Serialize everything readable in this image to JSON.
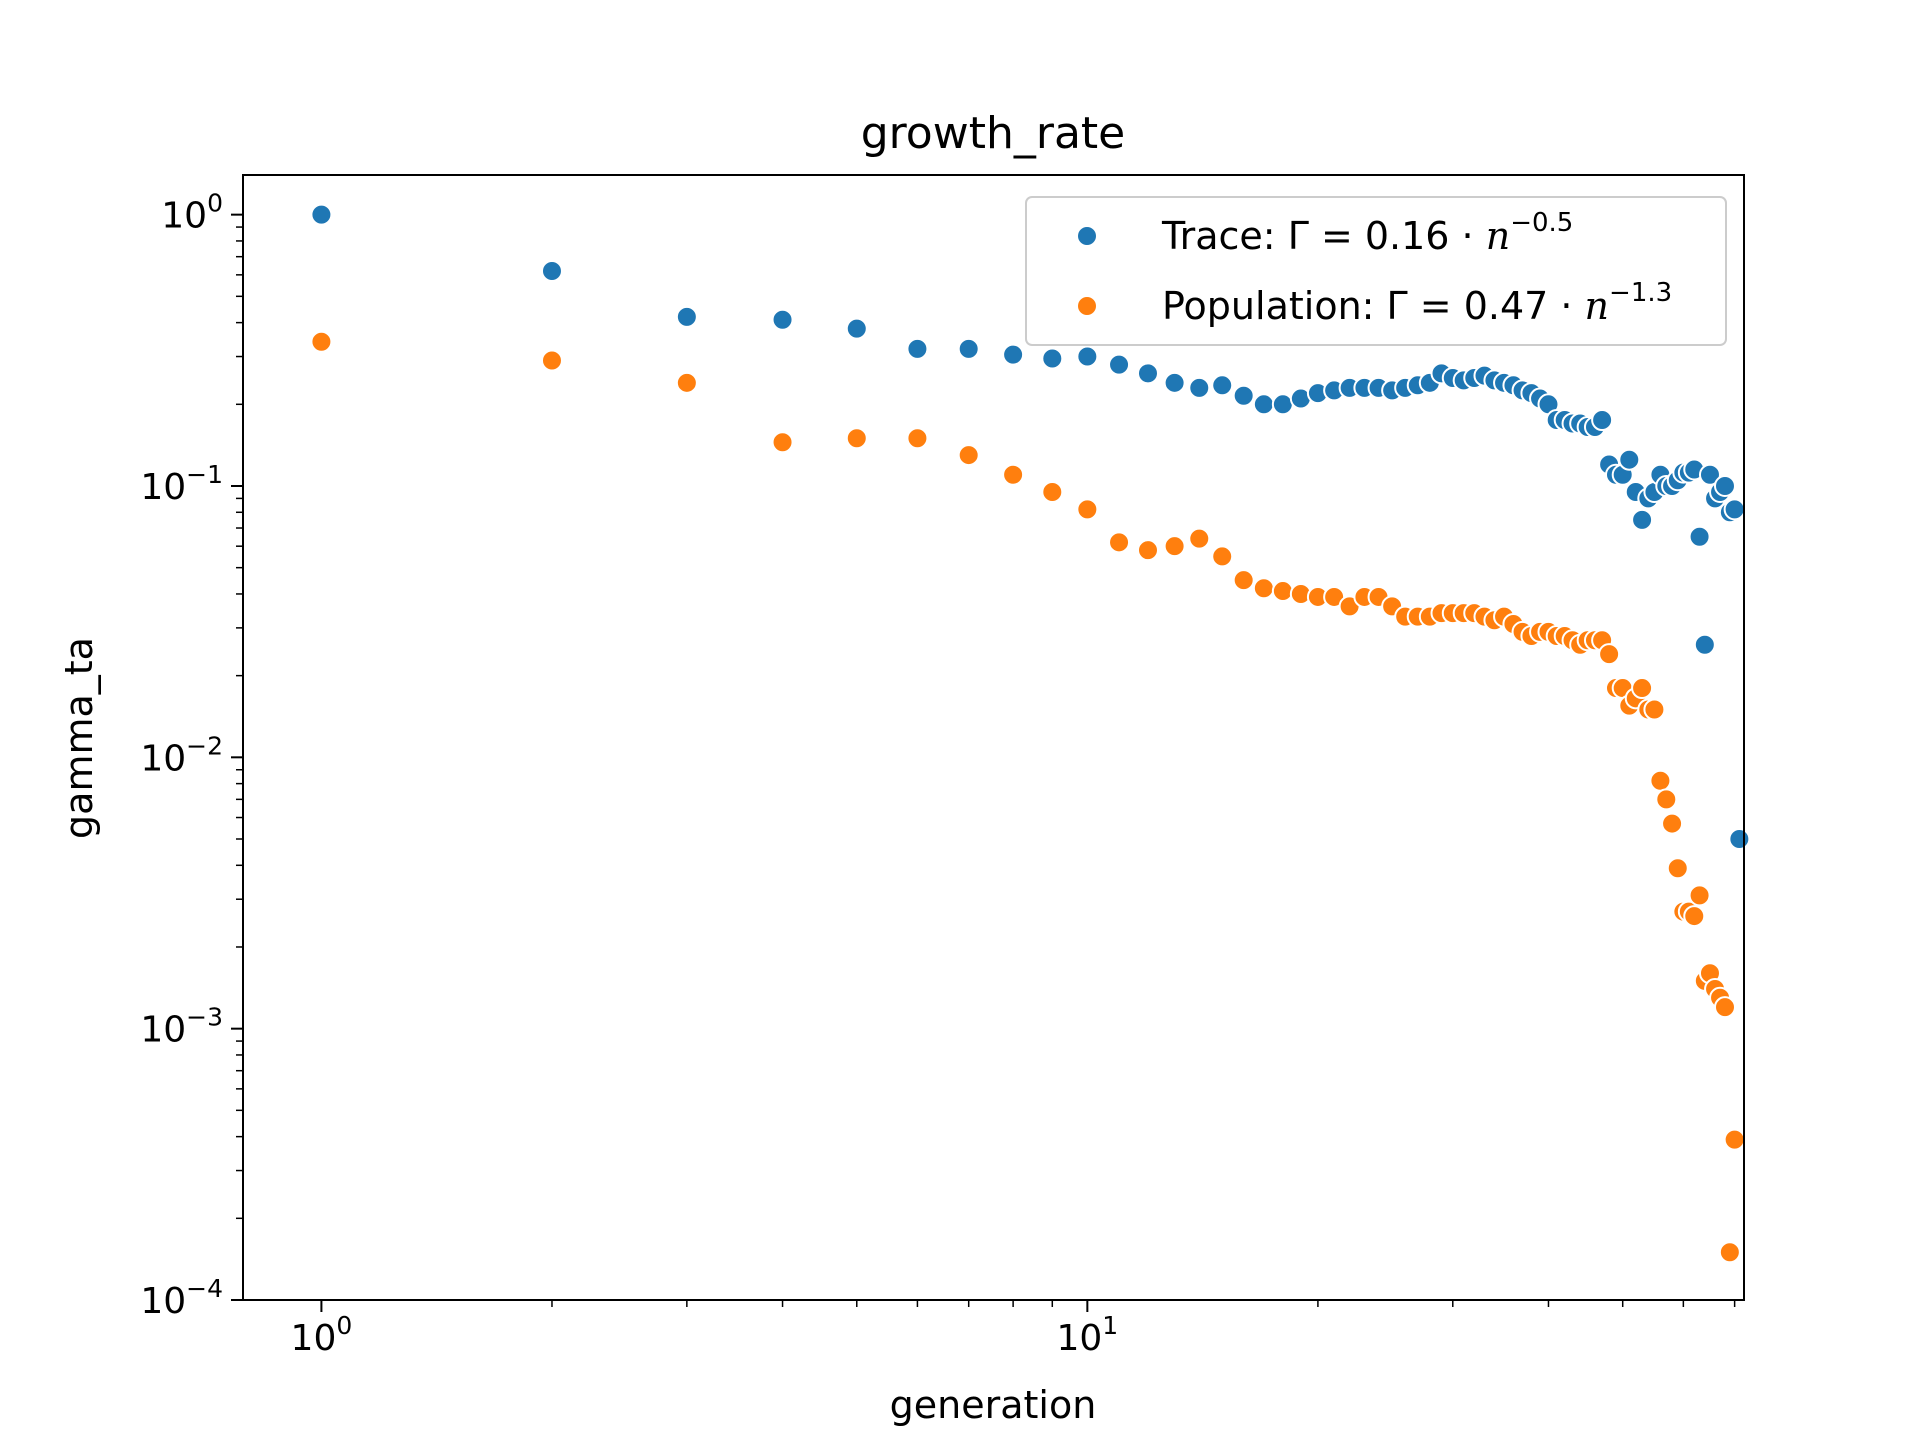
{
  "chart_data": {
    "type": "scatter",
    "title": "growth_rate",
    "xlabel": "generation",
    "ylabel": "gamma_ta",
    "xscale": "log",
    "yscale": "log",
    "xlim": [
      0.79,
      72
    ],
    "ylim": [
      0.0001,
      1.4
    ],
    "xticks": [
      {
        "base": "10",
        "exp": "0",
        "value": 1
      },
      {
        "base": "10",
        "exp": "1",
        "value": 10
      }
    ],
    "yticks": [
      {
        "base": "10",
        "exp": "0",
        "value": 1
      },
      {
        "base": "10",
        "exp": "−1",
        "value": 0.1
      },
      {
        "base": "10",
        "exp": "−2",
        "value": 0.01
      },
      {
        "base": "10",
        "exp": "−3",
        "value": 0.001
      },
      {
        "base": "10",
        "exp": "−4",
        "value": 0.0001
      }
    ],
    "grid": false,
    "legend_position": "top-right",
    "series": [
      {
        "name": "Trace",
        "legend": {
          "label": "Trace: ",
          "eq": "Γ = 0.16 · ",
          "n": "n",
          "exp": "−0.5"
        },
        "color": "#1f77b4",
        "points": [
          [
            1,
            1.0
          ],
          [
            2,
            0.62
          ],
          [
            3,
            0.42
          ],
          [
            4,
            0.41
          ],
          [
            5,
            0.38
          ],
          [
            6,
            0.32
          ],
          [
            7,
            0.32
          ],
          [
            8,
            0.305
          ],
          [
            9,
            0.295
          ],
          [
            10,
            0.3
          ],
          [
            11,
            0.28
          ],
          [
            12,
            0.26
          ],
          [
            13,
            0.24
          ],
          [
            14,
            0.23
          ],
          [
            15,
            0.235
          ],
          [
            16,
            0.215
          ],
          [
            17,
            0.2
          ],
          [
            18,
            0.2
          ],
          [
            19,
            0.21
          ],
          [
            20,
            0.22
          ],
          [
            21,
            0.225
          ],
          [
            22,
            0.23
          ],
          [
            23,
            0.23
          ],
          [
            24,
            0.23
          ],
          [
            25,
            0.225
          ],
          [
            26,
            0.23
          ],
          [
            27,
            0.235
          ],
          [
            28,
            0.24
          ],
          [
            29,
            0.26
          ],
          [
            30,
            0.25
          ],
          [
            31,
            0.245
          ],
          [
            32,
            0.25
          ],
          [
            33,
            0.255
          ],
          [
            34,
            0.245
          ],
          [
            35,
            0.24
          ],
          [
            36,
            0.235
          ],
          [
            37,
            0.225
          ],
          [
            38,
            0.22
          ],
          [
            39,
            0.21
          ],
          [
            40,
            0.2
          ],
          [
            41,
            0.175
          ],
          [
            42,
            0.175
          ],
          [
            43,
            0.17
          ],
          [
            44,
            0.17
          ],
          [
            45,
            0.165
          ],
          [
            46,
            0.165
          ],
          [
            47,
            0.175
          ],
          [
            48,
            0.12
          ],
          [
            49,
            0.11
          ],
          [
            50,
            0.11
          ],
          [
            51,
            0.125
          ],
          [
            52,
            0.095
          ],
          [
            53,
            0.075
          ],
          [
            54,
            0.09
          ],
          [
            55,
            0.095
          ],
          [
            56,
            0.11
          ],
          [
            57,
            0.1
          ],
          [
            58,
            0.1
          ],
          [
            59,
            0.105
          ],
          [
            60,
            0.112
          ],
          [
            61,
            0.112
          ],
          [
            62,
            0.115
          ],
          [
            63,
            0.065
          ],
          [
            64,
            0.026
          ],
          [
            65,
            0.11
          ],
          [
            66,
            0.09
          ],
          [
            67,
            0.095
          ],
          [
            68,
            0.1
          ],
          [
            69,
            0.08
          ],
          [
            70,
            0.082
          ],
          [
            71,
            0.005
          ]
        ]
      },
      {
        "name": "Population",
        "legend": {
          "label": "Population: ",
          "eq": "Γ = 0.47 · ",
          "n": "n",
          "exp": "−1.3"
        },
        "color": "#ff7f0e",
        "points": [
          [
            1,
            0.34
          ],
          [
            2,
            0.29
          ],
          [
            3,
            0.24
          ],
          [
            4,
            0.145
          ],
          [
            5,
            0.15
          ],
          [
            6,
            0.15
          ],
          [
            7,
            0.13
          ],
          [
            8,
            0.11
          ],
          [
            9,
            0.095
          ],
          [
            10,
            0.082
          ],
          [
            11,
            0.062
          ],
          [
            12,
            0.058
          ],
          [
            13,
            0.06
          ],
          [
            14,
            0.064
          ],
          [
            15,
            0.055
          ],
          [
            16,
            0.045
          ],
          [
            17,
            0.042
          ],
          [
            18,
            0.041
          ],
          [
            19,
            0.04
          ],
          [
            20,
            0.039
          ],
          [
            21,
            0.039
          ],
          [
            22,
            0.036
          ],
          [
            23,
            0.039
          ],
          [
            24,
            0.039
          ],
          [
            25,
            0.036
          ],
          [
            26,
            0.033
          ],
          [
            27,
            0.033
          ],
          [
            28,
            0.033
          ],
          [
            29,
            0.034
          ],
          [
            30,
            0.034
          ],
          [
            31,
            0.034
          ],
          [
            32,
            0.034
          ],
          [
            33,
            0.033
          ],
          [
            34,
            0.032
          ],
          [
            35,
            0.033
          ],
          [
            36,
            0.031
          ],
          [
            37,
            0.029
          ],
          [
            38,
            0.028
          ],
          [
            39,
            0.029
          ],
          [
            40,
            0.029
          ],
          [
            41,
            0.028
          ],
          [
            42,
            0.028
          ],
          [
            43,
            0.027
          ],
          [
            44,
            0.026
          ],
          [
            45,
            0.027
          ],
          [
            46,
            0.027
          ],
          [
            47,
            0.027
          ],
          [
            48,
            0.024
          ],
          [
            49,
            0.018
          ],
          [
            50,
            0.018
          ],
          [
            51,
            0.0155
          ],
          [
            52,
            0.0165
          ],
          [
            53,
            0.018
          ],
          [
            54,
            0.015
          ],
          [
            55,
            0.015
          ],
          [
            56,
            0.0082
          ],
          [
            57,
            0.007
          ],
          [
            58,
            0.0057
          ],
          [
            59,
            0.0039
          ],
          [
            60,
            0.0027
          ],
          [
            61,
            0.0027
          ],
          [
            62,
            0.0026
          ],
          [
            63,
            0.0031
          ],
          [
            64,
            0.0015
          ],
          [
            65,
            0.0016
          ],
          [
            66,
            0.0014
          ],
          [
            67,
            0.0013
          ],
          [
            68,
            0.0012
          ],
          [
            69,
            0.00015
          ],
          [
            70,
            0.00039
          ]
        ]
      }
    ]
  }
}
